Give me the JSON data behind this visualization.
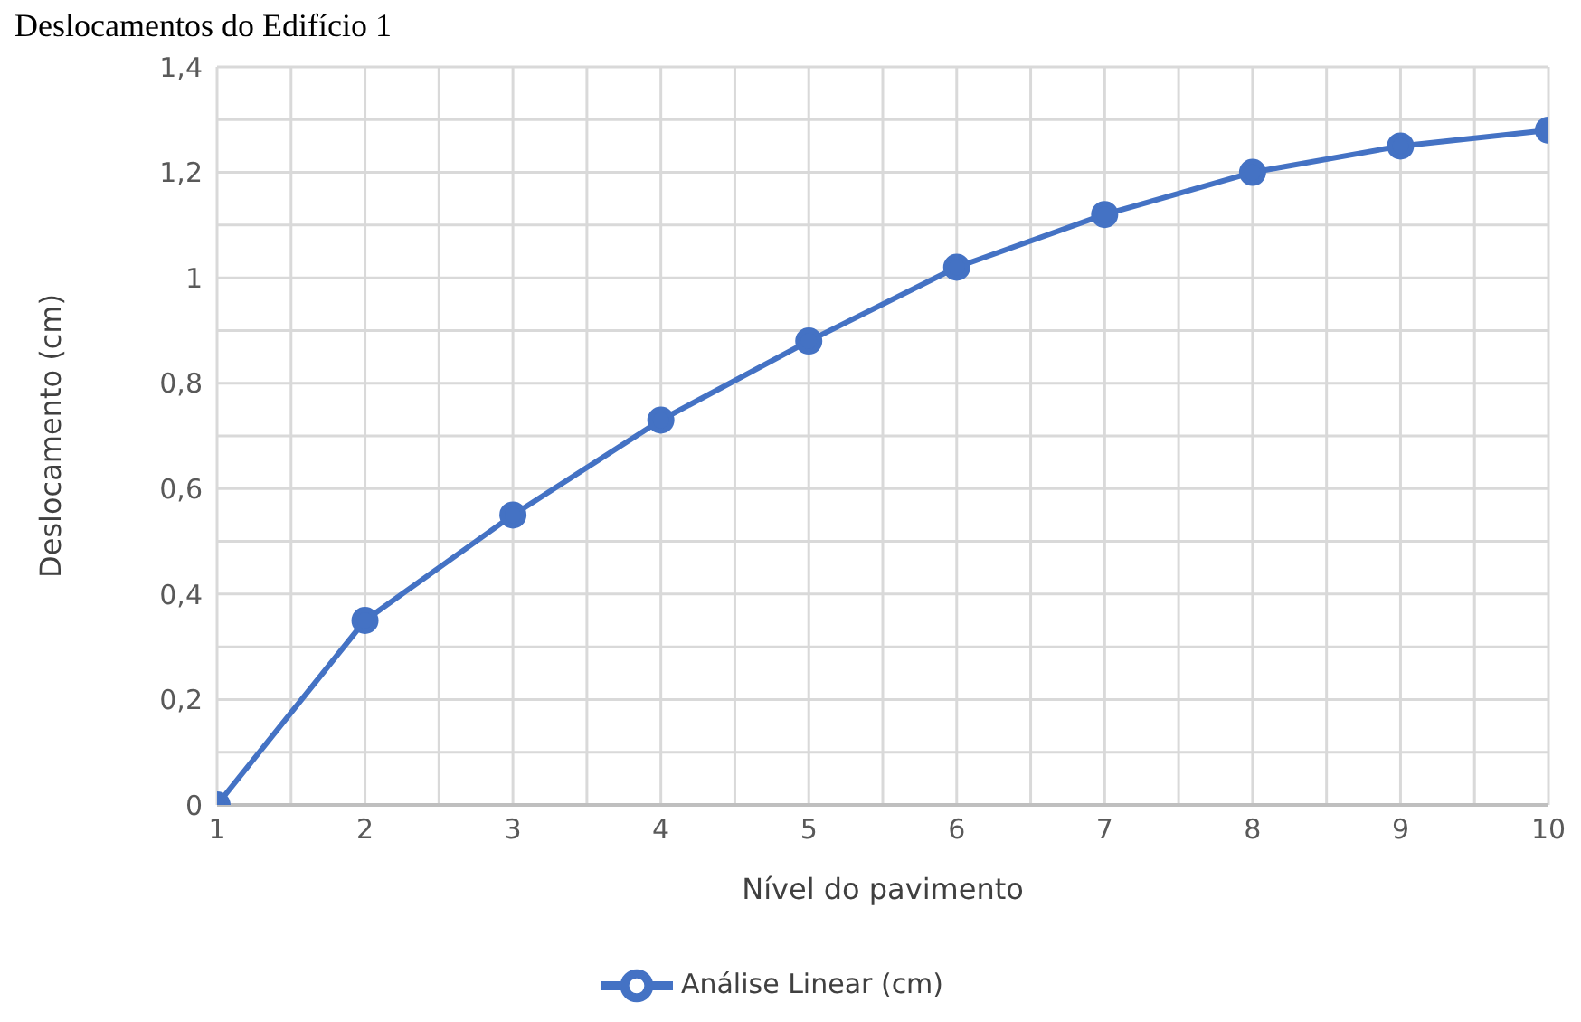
{
  "chart_data": {
    "type": "line",
    "title": "Deslocamentos do Edifício 1",
    "xlabel": "Nível do pavimento",
    "ylabel": "Deslocamento (cm)",
    "x": [
      1,
      2,
      3,
      4,
      5,
      6,
      7,
      8,
      9,
      10
    ],
    "series": [
      {
        "name": "Análise Linear (cm)",
        "color": "#4472c4",
        "values": [
          0,
          0.35,
          0.55,
          0.73,
          0.88,
          1.02,
          1.12,
          1.2,
          1.25,
          1.28
        ]
      }
    ],
    "xlim": [
      1,
      10
    ],
    "xticks": [
      1,
      {
        "value": 1.5,
        "label": null
      },
      2,
      {
        "value": 2.5,
        "label": null
      },
      3,
      {
        "value": 3.5,
        "label": null
      },
      4,
      {
        "value": 4.5,
        "label": null
      },
      5,
      {
        "value": 5.5,
        "label": null
      },
      6,
      {
        "value": 6.5,
        "label": null
      },
      7,
      {
        "value": 7.5,
        "label": null
      },
      8,
      {
        "value": 8.5,
        "label": null
      },
      9,
      {
        "value": 9.5,
        "label": null
      },
      10
    ],
    "ylim": [
      0,
      1.4
    ],
    "yticks": [
      0,
      {
        "value": 0.1,
        "label": null
      },
      {
        "value": 0.2,
        "label": "0,2"
      },
      {
        "value": 0.3,
        "label": null
      },
      {
        "value": 0.4,
        "label": "0,4"
      },
      {
        "value": 0.5,
        "label": null
      },
      {
        "value": 0.6,
        "label": "0,6"
      },
      {
        "value": 0.7,
        "label": null
      },
      {
        "value": 0.8,
        "label": "0,8"
      },
      {
        "value": 0.9,
        "label": null
      },
      1,
      {
        "value": 1.1,
        "label": null
      },
      {
        "value": 1.2,
        "label": "1,2"
      },
      {
        "value": 1.3,
        "label": null
      },
      {
        "value": 1.4,
        "label": "1,4"
      }
    ],
    "grid": true,
    "legend": "bottom",
    "marker": "circle",
    "line_style": "solid"
  }
}
